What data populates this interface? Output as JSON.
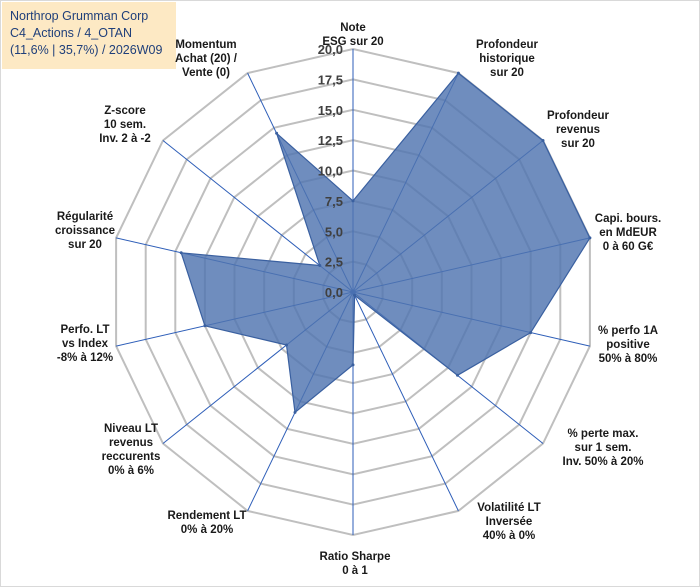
{
  "info": {
    "line1": "Northrop Grumman Corp",
    "line2": "C4_Actions / 4_OTAN",
    "line3": "(11,6% | 35,7%) / 2026W09"
  },
  "chart_data": {
    "type": "radar",
    "title": "",
    "rlim": [
      0,
      20
    ],
    "ticks": [
      "0,0",
      "2,5",
      "5,0",
      "7,5",
      "10,0",
      "12,5",
      "15,0",
      "17,5",
      "20,0"
    ],
    "tick_values": [
      0,
      2.5,
      5,
      7.5,
      10,
      12.5,
      15,
      17.5,
      20
    ],
    "grid": true,
    "legend": "none",
    "axes": [
      [
        "Note",
        "ESG sur 20"
      ],
      [
        "Profondeur",
        "historique",
        "sur 20"
      ],
      [
        "Profondeur",
        "revenus",
        "sur 20"
      ],
      [
        "Capi. bours.",
        "en MdEUR",
        "0 à 60 G€"
      ],
      [
        "% perfo 1A",
        "positive",
        "50% à 80%"
      ],
      [
        "% perte max.",
        "sur 1 sem.",
        "Inv. 50% à 20%"
      ],
      [
        "Volatilité LT",
        "Inversée",
        "40% à 0%"
      ],
      [
        "Ratio Sharpe",
        "0 à 1"
      ],
      [
        "Rendement LT",
        "0% à 20%"
      ],
      [
        "Niveau LT",
        "revenus",
        "reccurents",
        "0% à 6%"
      ],
      [
        "Perfo. LT",
        "vs Index",
        "-8% à 12%"
      ],
      [
        "Régularité",
        "croissance",
        "sur 20"
      ],
      [
        "Z-score",
        "10 sem.",
        "Inv. 2 à -2"
      ],
      [
        "Momentum",
        "Achat (20) /",
        "Vente (0)"
      ]
    ],
    "series": [
      {
        "values": [
          7.5,
          20,
          20,
          20,
          15,
          11,
          0.3,
          6.0,
          11,
          7.0,
          12.5,
          14.5,
          3.5,
          14.5
        ]
      }
    ],
    "colors": {
      "fill": "#4f74b0",
      "stroke": "#3a60a0",
      "grid": "#bfbfbf",
      "spoke": "#2e5eb8"
    }
  }
}
